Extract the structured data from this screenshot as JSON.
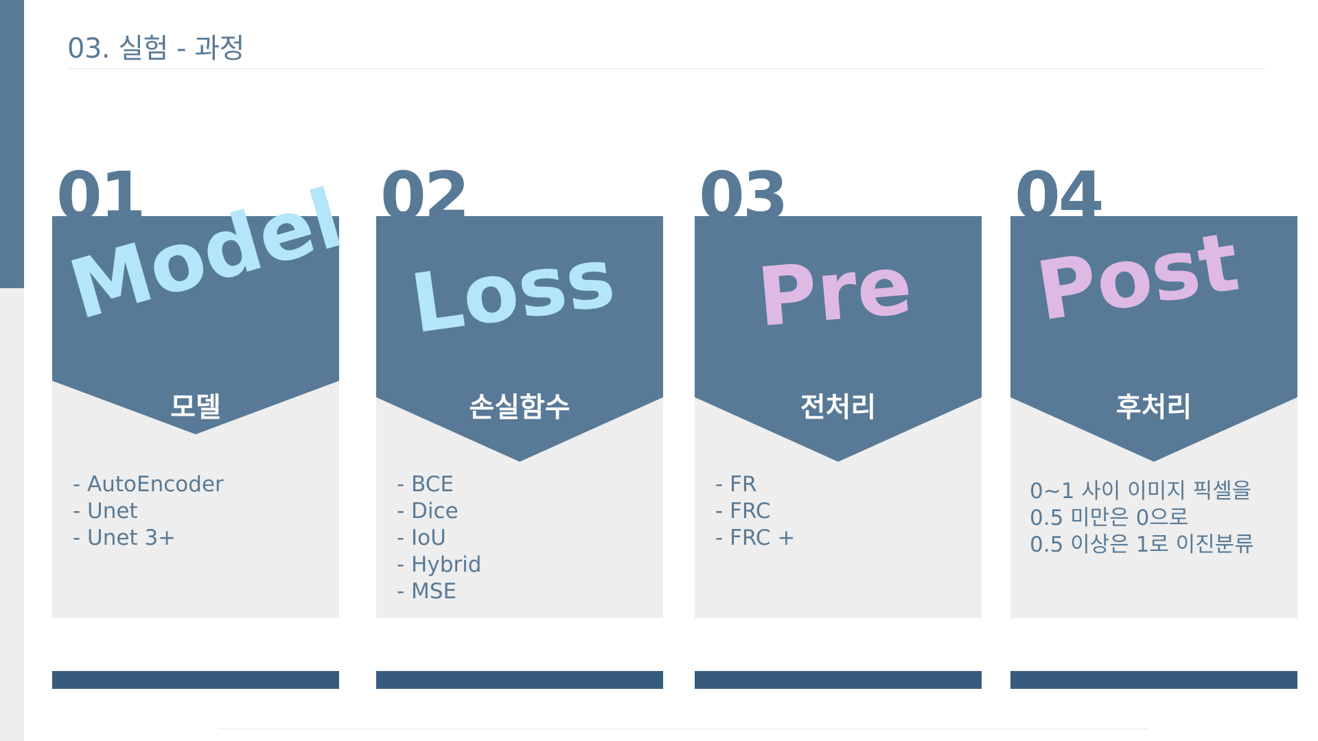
{
  "header": {
    "title": "03. 실험 - 과정"
  },
  "theme": {
    "primary": "#587a97",
    "dark": "#365b7c",
    "panel": "#eeeeee",
    "cyan": "#b3e6f8",
    "pink": "#deb9e4"
  },
  "cards": [
    {
      "number": "01",
      "word": "Model",
      "subtitle": "모델",
      "items": [
        "- AutoEncoder",
        "- Unet",
        "- Unet 3+"
      ]
    },
    {
      "number": "02",
      "word": "Loss",
      "subtitle": "손실함수",
      "items": [
        "- BCE",
        "- Dice",
        "- IoU",
        "- Hybrid",
        "- MSE"
      ]
    },
    {
      "number": "03",
      "word": "Pre",
      "subtitle": "전처리",
      "items": [
        "- FR",
        "- FRC",
        "- FRC +"
      ]
    },
    {
      "number": "04",
      "word": "Post",
      "subtitle": "후처리",
      "lines": [
        "0~1 사이 이미지 픽셀을",
        "0.5 미만은 0으로",
        "0.5 이상은 1로 이진분류"
      ]
    }
  ]
}
